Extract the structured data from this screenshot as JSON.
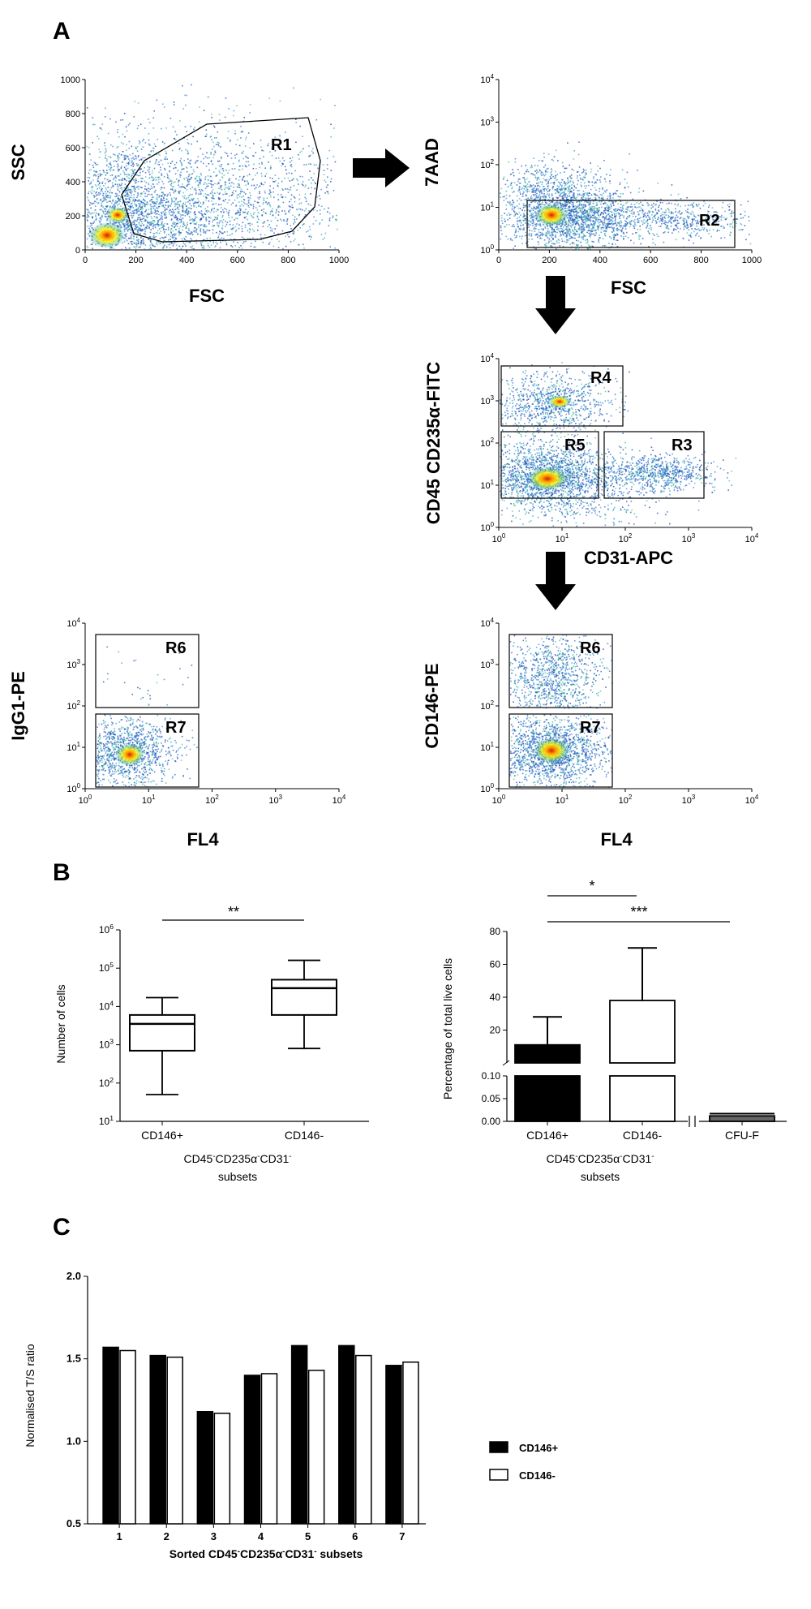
{
  "panel_labels": {
    "a": "A",
    "b": "B",
    "c": "C"
  },
  "chart_data": [
    {
      "type": "scatter",
      "id": "facs1",
      "xlabel": "FSC",
      "ylabel": "SSC",
      "x_ticks": [
        "0",
        "200",
        "400",
        "600",
        "800",
        "1000"
      ],
      "y_ticks": [
        "0",
        "200",
        "400",
        "600",
        "800",
        "1000"
      ],
      "gates": [
        {
          "name": "R1"
        }
      ],
      "legend": "none"
    },
    {
      "type": "scatter",
      "id": "facs2",
      "xlabel": "FSC",
      "ylabel": "7AAD",
      "x_ticks": [
        "0",
        "200",
        "400",
        "600",
        "800",
        "1000"
      ],
      "y_ticks": [
        {
          "base": "10",
          "exp": "0"
        },
        {
          "base": "10",
          "exp": "1"
        },
        {
          "base": "10",
          "exp": "2"
        },
        {
          "base": "10",
          "exp": "3"
        },
        {
          "base": "10",
          "exp": "4"
        }
      ],
      "gates": [
        {
          "name": "R2"
        }
      ]
    },
    {
      "type": "scatter",
      "id": "facs3",
      "xlabel": "CD31-APC",
      "ylabel": "CD45 CD235α-FITC",
      "x_ticks": [
        {
          "base": "10",
          "exp": "0"
        },
        {
          "base": "10",
          "exp": "1"
        },
        {
          "base": "10",
          "exp": "2"
        },
        {
          "base": "10",
          "exp": "3"
        },
        {
          "base": "10",
          "exp": "4"
        }
      ],
      "y_ticks": [
        {
          "base": "10",
          "exp": "0"
        },
        {
          "base": "10",
          "exp": "1"
        },
        {
          "base": "10",
          "exp": "2"
        },
        {
          "base": "10",
          "exp": "3"
        },
        {
          "base": "10",
          "exp": "4"
        }
      ],
      "gates": [
        {
          "name": "R4"
        },
        {
          "name": "R5"
        },
        {
          "name": "R3"
        }
      ]
    },
    {
      "type": "scatter",
      "id": "facs4",
      "xlabel": "FL4",
      "ylabel": "IgG1-PE",
      "x_ticks": [
        {
          "base": "10",
          "exp": "0"
        },
        {
          "base": "10",
          "exp": "1"
        },
        {
          "base": "10",
          "exp": "2"
        },
        {
          "base": "10",
          "exp": "3"
        },
        {
          "base": "10",
          "exp": "4"
        }
      ],
      "y_ticks": [
        {
          "base": "10",
          "exp": "0"
        },
        {
          "base": "10",
          "exp": "1"
        },
        {
          "base": "10",
          "exp": "2"
        },
        {
          "base": "10",
          "exp": "3"
        },
        {
          "base": "10",
          "exp": "4"
        }
      ],
      "gates": [
        {
          "name": "R6"
        },
        {
          "name": "R7"
        }
      ]
    },
    {
      "type": "scatter",
      "id": "facs5",
      "xlabel": "FL4",
      "ylabel": "CD146-PE",
      "x_ticks": [
        {
          "base": "10",
          "exp": "0"
        },
        {
          "base": "10",
          "exp": "1"
        },
        {
          "base": "10",
          "exp": "2"
        },
        {
          "base": "10",
          "exp": "3"
        },
        {
          "base": "10",
          "exp": "4"
        }
      ],
      "y_ticks": [
        {
          "base": "10",
          "exp": "0"
        },
        {
          "base": "10",
          "exp": "1"
        },
        {
          "base": "10",
          "exp": "2"
        },
        {
          "base": "10",
          "exp": "3"
        },
        {
          "base": "10",
          "exp": "4"
        }
      ],
      "gates": [
        {
          "name": "R6"
        },
        {
          "name": "R7"
        }
      ]
    },
    {
      "type": "box",
      "id": "boxplot",
      "ylabel": "Number of cells",
      "yscale": "log",
      "ylim_exp": [
        1,
        6
      ],
      "y_ticks": [
        {
          "base": "10",
          "exp": "1"
        },
        {
          "base": "10",
          "exp": "2"
        },
        {
          "base": "10",
          "exp": "3"
        },
        {
          "base": "10",
          "exp": "4"
        },
        {
          "base": "10",
          "exp": "5"
        },
        {
          "base": "10",
          "exp": "6"
        }
      ],
      "categories": [
        "CD146+",
        "CD146-"
      ],
      "boxes": [
        {
          "name": "CD146+",
          "min": 50,
          "q1": 700,
          "median": 3500,
          "q3": 6000,
          "max": 17000
        },
        {
          "name": "CD146-",
          "min": 800,
          "q1": 6000,
          "median": 30000,
          "q3": 50000,
          "max": 160000
        }
      ],
      "significance": "**",
      "xlabel_line1": {
        "parts": [
          "CD45",
          "-",
          "CD235α",
          "-",
          "CD31",
          "-"
        ]
      },
      "xlabel_line2": "subsets"
    },
    {
      "type": "bar",
      "id": "percent",
      "ylabel": "Percentage of total live cells",
      "categories": [
        "CD146+",
        "CD146-",
        "CFU-F"
      ],
      "values": [
        11,
        38,
        0.012
      ],
      "errors": [
        17,
        32,
        0.005
      ],
      "upper_ticks": [
        "20",
        "40",
        "60",
        "80"
      ],
      "lower_ticks": [
        "0.00",
        "0.05",
        "0.10"
      ],
      "significance": [
        {
          "between": [
            "CD146+",
            "CD146-"
          ],
          "label": "*"
        },
        {
          "between": [
            "CD146+",
            "CFU-F"
          ],
          "label": "***"
        }
      ],
      "xlabel_line1": {
        "parts": [
          "CD45",
          "-",
          "CD235α",
          "-",
          "CD31",
          "-"
        ]
      },
      "xlabel_line2": "subsets"
    },
    {
      "type": "bar",
      "id": "ts_ratio",
      "ylabel": "Normalised T/S ratio",
      "ylim": [
        0.5,
        2.0
      ],
      "y_ticks": [
        "0.5",
        "1.0",
        "1.5",
        "2.0"
      ],
      "categories": [
        "1",
        "2",
        "3",
        "4",
        "5",
        "6",
        "7"
      ],
      "series": [
        {
          "name": "CD146+",
          "color": "#000000",
          "values": [
            1.57,
            1.52,
            1.18,
            1.4,
            1.58,
            1.58,
            1.46
          ]
        },
        {
          "name": "CD146-",
          "color": "#ffffff",
          "values": [
            1.55,
            1.51,
            1.17,
            1.41,
            1.43,
            1.52,
            1.48
          ]
        }
      ],
      "xlabel": {
        "parts": [
          "Sorted CD45",
          "-",
          "CD235α",
          "-",
          "CD31",
          "-",
          " subsets"
        ]
      },
      "legend": "right"
    }
  ]
}
